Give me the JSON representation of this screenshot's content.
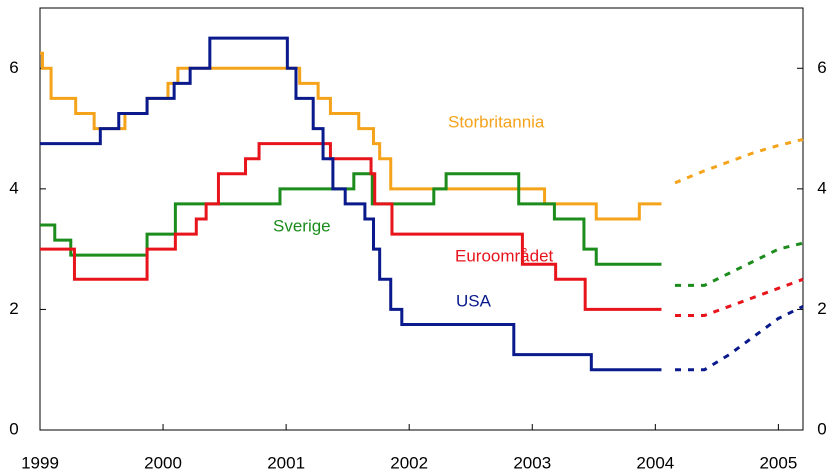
{
  "chart_data": {
    "type": "step-line",
    "xlim": [
      1999,
      2005.2
    ],
    "xticks": [
      1999,
      2000,
      2001,
      2002,
      2003,
      2004,
      2005
    ],
    "ylim": [
      0,
      7
    ],
    "yticks": [
      0,
      2,
      4,
      6
    ],
    "y2lim": [
      0,
      7
    ],
    "y2ticks": [
      0,
      2,
      4,
      6
    ],
    "series": [
      {
        "name": "Storbritannia",
        "color": "#f5a31a",
        "x": [
          1999.0,
          1999.02,
          1999.09,
          1999.29,
          1999.44,
          1999.69,
          1999.87,
          2000.04,
          2000.12,
          2001.11,
          2001.26,
          2001.36,
          2001.59,
          2001.71,
          2001.76,
          2001.85,
          2003.1,
          2003.52,
          2003.87,
          2004.05
        ],
        "values": [
          6.25,
          6.0,
          5.5,
          5.25,
          5.0,
          5.25,
          5.5,
          5.75,
          6.0,
          5.75,
          5.5,
          5.25,
          5.0,
          4.75,
          4.5,
          4.0,
          3.75,
          3.5,
          3.75,
          3.75
        ],
        "forecast_x": [
          2004.16,
          2004.4,
          2004.6,
          2004.8,
          2005.0,
          2005.2
        ],
        "forecast_values": [
          4.1,
          4.3,
          4.45,
          4.6,
          4.72,
          4.82
        ]
      },
      {
        "name": "Sverige",
        "color": "#1c8c1c",
        "x": [
          1999.0,
          1999.12,
          1999.25,
          1999.87,
          2000.1,
          2000.95,
          2001.55,
          2001.7,
          2002.2,
          2002.3,
          2002.89,
          2003.18,
          2003.42,
          2003.52,
          2004.05
        ],
        "values": [
          3.4,
          3.15,
          2.9,
          3.25,
          3.75,
          4.0,
          4.25,
          3.75,
          4.0,
          4.25,
          3.75,
          3.5,
          3.0,
          2.75,
          2.75
        ],
        "forecast_x": [
          2004.16,
          2004.4,
          2004.6,
          2004.8,
          2005.0,
          2005.2
        ],
        "forecast_values": [
          2.4,
          2.4,
          2.6,
          2.8,
          3.0,
          3.1
        ]
      },
      {
        "name": "Euroområdet",
        "color": "#e8141c",
        "x": [
          1999.0,
          1999.28,
          1999.87,
          2000.1,
          2000.27,
          2000.35,
          2000.45,
          2000.67,
          2000.78,
          2001.36,
          2001.69,
          2001.72,
          2001.86,
          2002.92,
          2003.19,
          2003.43,
          2004.05
        ],
        "values": [
          3.0,
          2.5,
          3.0,
          3.25,
          3.5,
          3.75,
          4.25,
          4.5,
          4.75,
          4.5,
          4.25,
          3.75,
          3.25,
          2.75,
          2.5,
          2.0,
          2.0
        ],
        "forecast_x": [
          2004.16,
          2004.4,
          2004.6,
          2004.8,
          2005.0,
          2005.2
        ],
        "forecast_values": [
          1.9,
          1.9,
          2.05,
          2.2,
          2.35,
          2.5
        ]
      },
      {
        "name": "USA",
        "color": "#0a1a8c",
        "x": [
          1999.0,
          1999.49,
          1999.64,
          1999.87,
          2000.09,
          2000.22,
          2000.38,
          2001.01,
          2001.08,
          2001.22,
          2001.3,
          2001.38,
          2001.48,
          2001.64,
          2001.71,
          2001.76,
          2001.85,
          2001.94,
          2002.85,
          2003.48,
          2004.05
        ],
        "values": [
          4.75,
          5.0,
          5.25,
          5.5,
          5.75,
          6.0,
          6.5,
          6.0,
          5.5,
          5.0,
          4.5,
          4.0,
          3.75,
          3.5,
          3.0,
          2.5,
          2.0,
          1.75,
          1.25,
          1.0,
          1.0
        ],
        "forecast_x": [
          2004.16,
          2004.4,
          2004.6,
          2004.8,
          2005.0,
          2005.2
        ],
        "forecast_values": [
          1.0,
          1.0,
          1.25,
          1.55,
          1.85,
          2.05
        ]
      }
    ]
  }
}
